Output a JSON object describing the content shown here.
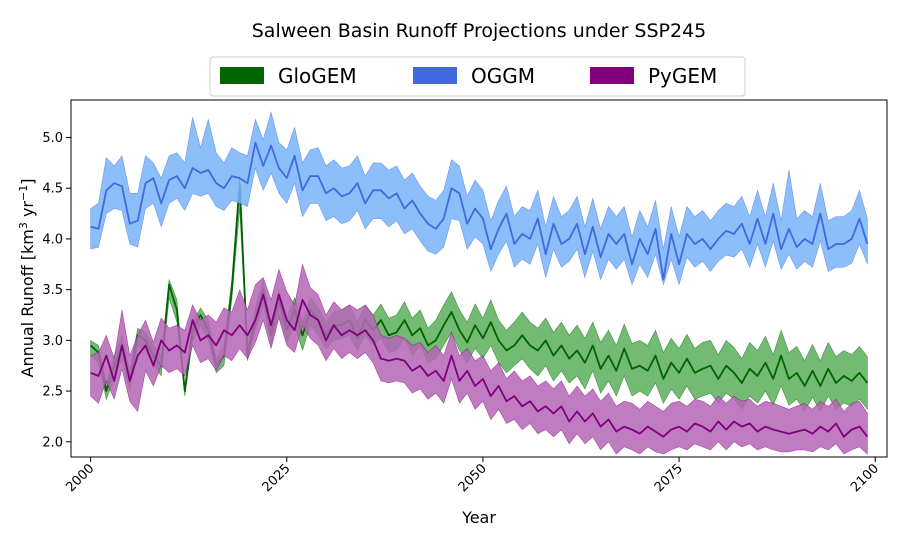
{
  "chart_data": {
    "type": "area",
    "title": "Salween Basin Runoff Projections under SSP245",
    "xlabel": "Year",
    "ylabel": "Annual Runoff [km³ yr⁻¹]",
    "ylabel_parts": {
      "base": "Annual Runoff [km",
      "sup1": "3",
      "mid": " yr",
      "sup2": "−1",
      "end": "]"
    },
    "xlim": [
      1997.5,
      2101.5
    ],
    "ylim": [
      1.85,
      5.37
    ],
    "xticks": [
      2000,
      2025,
      2050,
      2075,
      2100
    ],
    "xtick_labels": [
      "2000",
      "2025",
      "2050",
      "2075",
      "2100"
    ],
    "yticks": [
      2.0,
      2.5,
      3.0,
      3.5,
      4.0,
      4.5,
      5.0
    ],
    "ytick_labels": [
      "2.0",
      "2.5",
      "3.0",
      "3.5",
      "4.0",
      "4.5",
      "5.0"
    ],
    "legend_position": "top-center",
    "x": [
      2000,
      2001,
      2002,
      2003,
      2004,
      2005,
      2006,
      2007,
      2008,
      2009,
      2010,
      2011,
      2012,
      2013,
      2014,
      2015,
      2016,
      2017,
      2018,
      2019,
      2020,
      2021,
      2022,
      2023,
      2024,
      2025,
      2026,
      2027,
      2028,
      2029,
      2030,
      2031,
      2032,
      2033,
      2034,
      2035,
      2036,
      2037,
      2038,
      2039,
      2040,
      2041,
      2042,
      2043,
      2044,
      2045,
      2046,
      2047,
      2048,
      2049,
      2050,
      2051,
      2052,
      2053,
      2054,
      2055,
      2056,
      2057,
      2058,
      2059,
      2060,
      2061,
      2062,
      2063,
      2064,
      2065,
      2066,
      2067,
      2068,
      2069,
      2070,
      2071,
      2072,
      2073,
      2074,
      2075,
      2076,
      2077,
      2078,
      2079,
      2080,
      2081,
      2082,
      2083,
      2084,
      2085,
      2086,
      2087,
      2088,
      2089,
      2090,
      2091,
      2092,
      2093,
      2094,
      2095,
      2096,
      2097,
      2098,
      2099
    ],
    "series": [
      {
        "name": "GloGEM",
        "color": "#006400",
        "fill": "#5aae5a",
        "mean": [
          2.95,
          2.88,
          2.5,
          2.75,
          2.95,
          2.6,
          3.05,
          3.0,
          2.85,
          2.75,
          3.55,
          3.3,
          2.5,
          3.1,
          3.25,
          3.1,
          2.75,
          2.85,
          3.5,
          4.55,
          2.85,
          3.2,
          3.5,
          3.05,
          3.4,
          3.1,
          3.3,
          3.05,
          3.3,
          3.2,
          3.05,
          3.15,
          3.15,
          3.2,
          3.02,
          3.2,
          3.1,
          3.2,
          3.05,
          3.08,
          3.2,
          3.05,
          3.12,
          2.95,
          3.0,
          3.15,
          3.28,
          3.1,
          2.98,
          3.15,
          3.02,
          3.18,
          3.0,
          2.9,
          2.95,
          3.05,
          2.95,
          2.9,
          3.0,
          2.85,
          2.95,
          2.82,
          2.9,
          2.78,
          2.95,
          2.72,
          2.85,
          2.7,
          2.92,
          2.72,
          2.75,
          2.7,
          2.85,
          2.62,
          2.78,
          2.68,
          2.82,
          2.68,
          2.72,
          2.75,
          2.62,
          2.75,
          2.68,
          2.58,
          2.72,
          2.65,
          2.78,
          2.62,
          2.85,
          2.62,
          2.68,
          2.55,
          2.7,
          2.55,
          2.72,
          2.58,
          2.65,
          2.6,
          2.68,
          2.58
        ],
        "lower": [
          2.85,
          2.78,
          2.42,
          2.62,
          2.82,
          2.5,
          2.95,
          2.9,
          2.75,
          2.65,
          3.42,
          3.18,
          2.45,
          3.0,
          3.15,
          3.0,
          2.68,
          2.75,
          3.4,
          4.3,
          2.8,
          3.1,
          3.35,
          2.95,
          3.25,
          2.98,
          3.15,
          2.9,
          3.15,
          3.05,
          2.92,
          3.0,
          3.02,
          3.05,
          2.9,
          3.05,
          2.95,
          3.02,
          2.88,
          2.9,
          3.02,
          2.85,
          2.95,
          2.78,
          2.82,
          2.95,
          3.08,
          2.9,
          2.78,
          2.92,
          2.82,
          2.95,
          2.78,
          2.68,
          2.75,
          2.82,
          2.72,
          2.65,
          2.75,
          2.6,
          2.7,
          2.58,
          2.65,
          2.52,
          2.7,
          2.48,
          2.6,
          2.45,
          2.65,
          2.45,
          2.5,
          2.45,
          2.58,
          2.38,
          2.52,
          2.42,
          2.55,
          2.42,
          2.45,
          2.48,
          2.38,
          2.48,
          2.42,
          2.32,
          2.45,
          2.38,
          2.5,
          2.36,
          2.55,
          2.36,
          2.42,
          2.3,
          2.44,
          2.3,
          2.45,
          2.32,
          2.38,
          2.35,
          2.42,
          2.32
        ],
        "upper": [
          3.0,
          2.95,
          2.58,
          2.85,
          3.05,
          2.7,
          3.12,
          3.08,
          2.95,
          2.85,
          3.6,
          3.4,
          2.55,
          3.18,
          3.32,
          3.2,
          2.82,
          2.95,
          3.6,
          4.62,
          2.92,
          3.32,
          3.6,
          3.15,
          3.5,
          3.22,
          3.42,
          3.18,
          3.42,
          3.32,
          3.18,
          3.28,
          3.3,
          3.35,
          3.18,
          3.35,
          3.25,
          3.36,
          3.22,
          3.25,
          3.38,
          3.22,
          3.3,
          3.12,
          3.2,
          3.35,
          3.48,
          3.3,
          3.18,
          3.36,
          3.22,
          3.4,
          3.2,
          3.1,
          3.18,
          3.28,
          3.18,
          3.12,
          3.22,
          3.08,
          3.18,
          3.05,
          3.15,
          3.02,
          3.18,
          2.98,
          3.1,
          2.95,
          3.16,
          2.97,
          3.0,
          2.95,
          3.1,
          2.88,
          3.02,
          2.92,
          3.06,
          2.92,
          2.98,
          3.0,
          2.86,
          3.0,
          2.93,
          2.82,
          2.98,
          2.9,
          3.04,
          2.86,
          3.1,
          2.88,
          2.94,
          2.8,
          2.96,
          2.8,
          2.98,
          2.84,
          2.9,
          2.86,
          2.94,
          2.84
        ]
      },
      {
        "name": "OGGM",
        "color": "#4169e1",
        "fill": "#78b4f8",
        "mean": [
          4.12,
          4.1,
          4.48,
          4.55,
          4.52,
          4.15,
          4.18,
          4.55,
          4.6,
          4.35,
          4.58,
          4.62,
          4.5,
          4.7,
          4.65,
          4.68,
          4.55,
          4.5,
          4.62,
          4.6,
          4.55,
          4.95,
          4.72,
          4.92,
          4.7,
          4.6,
          4.82,
          4.48,
          4.62,
          4.62,
          4.45,
          4.5,
          4.42,
          4.45,
          4.55,
          4.35,
          4.48,
          4.48,
          4.4,
          4.45,
          4.3,
          4.38,
          4.25,
          4.15,
          4.1,
          4.2,
          4.5,
          4.45,
          4.15,
          4.3,
          4.2,
          3.9,
          4.1,
          4.25,
          3.95,
          4.05,
          4.0,
          4.2,
          3.85,
          4.15,
          3.95,
          4.0,
          4.15,
          3.85,
          4.12,
          3.82,
          4.05,
          3.95,
          4.05,
          3.75,
          4.0,
          3.85,
          4.1,
          3.6,
          4.05,
          3.75,
          4.05,
          3.95,
          4.0,
          3.9,
          4.0,
          4.08,
          4.05,
          4.15,
          3.95,
          4.2,
          3.95,
          4.25,
          3.9,
          4.1,
          3.92,
          4.0,
          3.95,
          4.25,
          3.9,
          3.95,
          3.95,
          4.0,
          4.2,
          3.95
        ],
        "lower": [
          3.9,
          3.92,
          4.25,
          4.3,
          4.28,
          3.95,
          3.92,
          4.3,
          4.35,
          4.12,
          4.35,
          4.4,
          4.28,
          4.45,
          4.42,
          4.45,
          4.32,
          4.28,
          4.38,
          4.35,
          4.32,
          4.7,
          4.48,
          4.65,
          4.45,
          4.35,
          4.55,
          4.22,
          4.35,
          4.35,
          4.18,
          4.22,
          4.15,
          4.18,
          4.28,
          4.1,
          4.2,
          4.2,
          4.12,
          4.18,
          4.05,
          4.1,
          3.98,
          3.88,
          3.85,
          3.92,
          4.2,
          4.18,
          3.9,
          4.02,
          3.95,
          3.68,
          3.85,
          3.98,
          3.72,
          3.8,
          3.75,
          3.95,
          3.62,
          3.9,
          3.72,
          3.78,
          3.9,
          3.62,
          3.88,
          3.6,
          3.8,
          3.7,
          3.8,
          3.55,
          3.75,
          3.62,
          3.85,
          3.55,
          3.8,
          3.55,
          3.82,
          3.72,
          3.78,
          3.68,
          3.78,
          3.84,
          3.82,
          3.9,
          3.72,
          3.95,
          3.72,
          3.98,
          3.7,
          3.85,
          3.7,
          3.78,
          3.72,
          3.98,
          3.68,
          3.72,
          3.72,
          3.76,
          3.95,
          3.75
        ],
        "upper": [
          4.3,
          4.35,
          4.8,
          4.72,
          4.82,
          4.45,
          4.45,
          4.82,
          4.75,
          4.6,
          4.82,
          4.85,
          4.75,
          5.2,
          4.9,
          5.18,
          4.85,
          4.75,
          4.9,
          4.85,
          4.82,
          5.18,
          4.98,
          5.25,
          4.95,
          4.88,
          5.1,
          4.75,
          4.88,
          4.9,
          4.72,
          4.78,
          4.7,
          4.72,
          4.82,
          4.62,
          4.75,
          4.75,
          4.68,
          4.72,
          4.58,
          4.65,
          4.52,
          4.42,
          4.38,
          4.48,
          4.78,
          4.72,
          4.42,
          4.58,
          4.48,
          4.18,
          4.38,
          4.52,
          4.22,
          4.32,
          4.28,
          4.48,
          4.12,
          4.42,
          4.22,
          4.28,
          4.42,
          4.12,
          4.4,
          4.1,
          4.32,
          4.22,
          4.32,
          4.02,
          4.28,
          4.12,
          4.38,
          3.9,
          4.32,
          4.02,
          4.32,
          4.22,
          4.28,
          4.18,
          4.28,
          4.35,
          4.32,
          4.42,
          4.22,
          4.48,
          4.22,
          4.55,
          4.18,
          4.68,
          4.2,
          4.28,
          4.22,
          4.55,
          4.18,
          4.22,
          4.22,
          4.28,
          4.48,
          4.2
        ]
      },
      {
        "name": "PyGEM",
        "color": "#800080",
        "fill": "#b565b5",
        "mean": [
          2.68,
          2.65,
          2.85,
          2.6,
          2.95,
          2.6,
          2.85,
          2.95,
          2.75,
          3.0,
          2.9,
          2.95,
          2.88,
          3.2,
          3.0,
          3.05,
          2.95,
          3.1,
          3.05,
          3.15,
          3.05,
          3.2,
          3.45,
          3.15,
          3.45,
          3.2,
          3.1,
          3.4,
          3.25,
          3.2,
          3.0,
          3.15,
          3.05,
          3.1,
          3.05,
          3.1,
          3.0,
          2.82,
          2.8,
          2.82,
          2.8,
          2.7,
          2.75,
          2.65,
          2.7,
          2.6,
          2.85,
          2.6,
          2.7,
          2.55,
          2.62,
          2.45,
          2.55,
          2.4,
          2.45,
          2.35,
          2.4,
          2.3,
          2.35,
          2.28,
          2.35,
          2.2,
          2.3,
          2.2,
          2.28,
          2.15,
          2.22,
          2.1,
          2.15,
          2.12,
          2.08,
          2.15,
          2.1,
          2.05,
          2.12,
          2.15,
          2.1,
          2.18,
          2.15,
          2.1,
          2.2,
          2.12,
          2.2,
          2.15,
          2.18,
          2.1,
          2.15,
          2.12,
          2.1,
          2.08,
          2.1,
          2.12,
          2.08,
          2.15,
          2.1,
          2.18,
          2.05,
          2.12,
          2.15,
          2.05
        ],
        "lower": [
          2.45,
          2.38,
          2.6,
          2.42,
          2.72,
          2.4,
          2.3,
          2.7,
          2.55,
          2.75,
          2.68,
          2.72,
          2.65,
          2.95,
          2.78,
          2.82,
          2.7,
          2.85,
          2.8,
          2.92,
          2.82,
          2.98,
          3.2,
          2.92,
          3.22,
          2.95,
          2.88,
          3.15,
          3.02,
          2.95,
          2.8,
          2.92,
          2.82,
          2.88,
          2.82,
          2.88,
          2.78,
          2.6,
          2.58,
          2.6,
          2.58,
          2.48,
          2.52,
          2.42,
          2.48,
          2.38,
          2.62,
          2.38,
          2.48,
          2.32,
          2.4,
          2.22,
          2.32,
          2.18,
          2.22,
          2.12,
          2.18,
          2.08,
          2.12,
          2.05,
          2.12,
          1.98,
          2.08,
          1.98,
          2.05,
          1.92,
          2.0,
          1.88,
          1.95,
          1.92,
          1.88,
          1.95,
          1.9,
          1.88,
          1.92,
          1.95,
          1.92,
          1.98,
          1.95,
          1.92,
          2.0,
          1.92,
          2.0,
          1.95,
          1.98,
          1.92,
          1.95,
          1.92,
          1.9,
          1.9,
          1.92,
          1.92,
          1.9,
          1.95,
          1.92,
          1.98,
          1.88,
          1.92,
          1.95,
          1.88
        ],
        "upper": [
          2.85,
          2.88,
          3.05,
          2.82,
          3.3,
          2.85,
          3.05,
          3.2,
          2.98,
          3.22,
          3.12,
          3.15,
          3.1,
          3.35,
          3.2,
          3.25,
          3.18,
          3.32,
          3.28,
          3.5,
          3.3,
          3.55,
          3.62,
          3.4,
          3.7,
          3.48,
          3.35,
          3.75,
          3.52,
          3.45,
          3.25,
          3.38,
          3.3,
          3.35,
          3.3,
          3.35,
          3.25,
          3.05,
          3.02,
          3.05,
          3.02,
          2.95,
          2.98,
          2.88,
          2.95,
          2.85,
          3.08,
          2.85,
          2.92,
          2.8,
          2.85,
          2.7,
          2.78,
          2.62,
          2.7,
          2.6,
          2.65,
          2.55,
          2.6,
          2.52,
          2.6,
          2.45,
          2.55,
          2.45,
          2.52,
          2.4,
          2.48,
          2.35,
          2.4,
          2.38,
          2.32,
          2.4,
          2.35,
          2.3,
          2.38,
          2.4,
          2.35,
          2.42,
          2.4,
          2.35,
          2.45,
          2.38,
          2.45,
          2.4,
          2.42,
          2.35,
          2.4,
          2.38,
          2.35,
          2.32,
          2.35,
          2.38,
          2.32,
          2.4,
          2.35,
          2.42,
          2.3,
          2.38,
          2.4,
          2.28
        ]
      }
    ]
  }
}
